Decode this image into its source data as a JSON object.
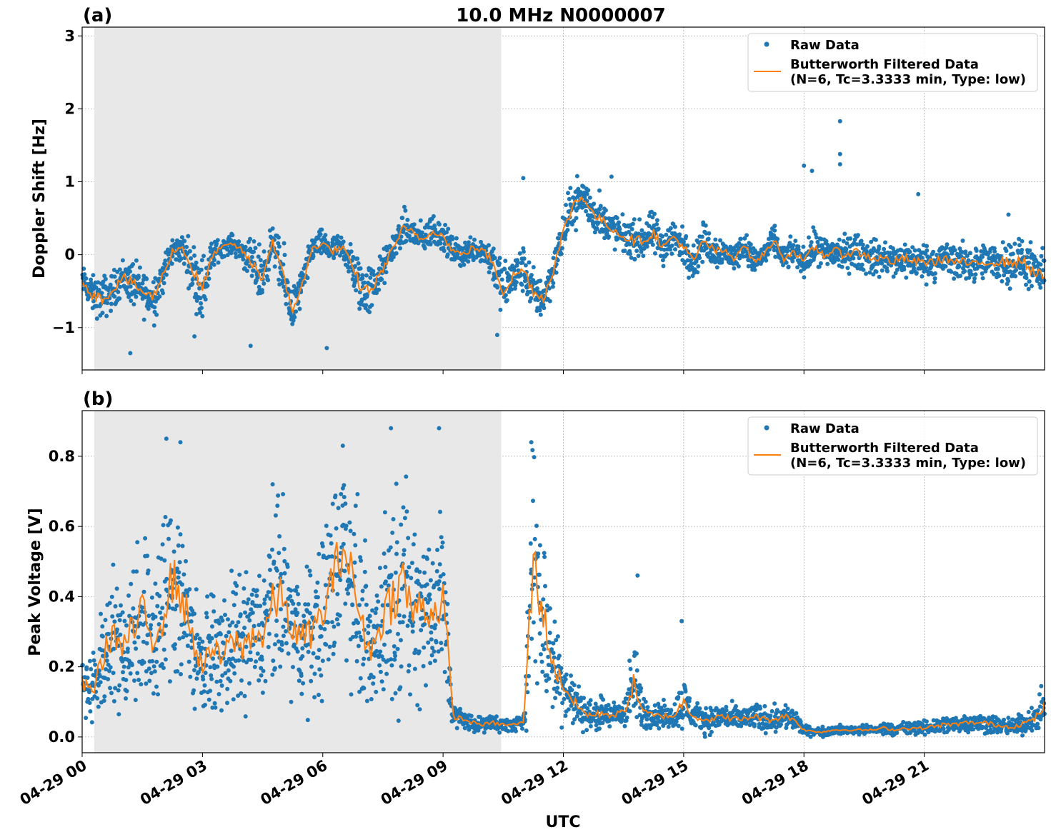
{
  "figure": {
    "title": "10.0 MHz N0000007",
    "xlabel": "UTC",
    "x_ticks": [
      "04-29 00",
      "04-29 03",
      "04-29 06",
      "04-29 09",
      "04-29 12",
      "04-29 15",
      "04-29 18",
      "04-29 21"
    ],
    "x_range_hours": [
      0,
      24
    ],
    "shaded_interval_hours": [
      0.3,
      10.45
    ],
    "colors": {
      "raw": "#1f77b4",
      "filtered": "#ff7f0e",
      "shade": "#e8e8e8",
      "grid": "#b0b0b0"
    }
  },
  "legend": {
    "raw_label": "Raw Data",
    "filtered_label_line1": "Butterworth Filtered Data",
    "filtered_label_line2": "(N=6, Tc=3.3333 min, Type: low)",
    "placement": "top-right"
  },
  "chart_data": [
    {
      "type": "scatter",
      "panel_label": "(a)",
      "ylabel": "Doppler Shift [Hz]",
      "ylim": [
        -1.58,
        3.12
      ],
      "y_ticks": [
        -1,
        0,
        1,
        2,
        3
      ],
      "y_tick_labels": [
        "−1",
        "0",
        "1",
        "2",
        "3"
      ],
      "grid": true,
      "series": [
        {
          "name": "Butterworth Filtered Data",
          "x": [
            0,
            0.25,
            0.5,
            0.75,
            1,
            1.25,
            1.5,
            1.75,
            2,
            2.25,
            2.5,
            2.75,
            3,
            3.25,
            3.5,
            3.75,
            4,
            4.25,
            4.5,
            4.75,
            5,
            5.25,
            5.5,
            5.75,
            6,
            6.25,
            6.5,
            6.75,
            7,
            7.25,
            7.5,
            7.75,
            8,
            8.25,
            8.5,
            8.75,
            9,
            9.25,
            9.5,
            9.75,
            10,
            10.25,
            10.5,
            10.75,
            11,
            11.25,
            11.5,
            11.75,
            12,
            12.25,
            12.5,
            12.75,
            13,
            13.25,
            13.5,
            13.75,
            14,
            14.25,
            14.5,
            14.75,
            15,
            15.25,
            15.5,
            15.75,
            16,
            16.25,
            16.5,
            16.75,
            17,
            17.25,
            17.5,
            17.75,
            18,
            18.25,
            18.5,
            18.75,
            19,
            19.25,
            19.5,
            19.75,
            20,
            20.25,
            20.5,
            20.75,
            21,
            21.25,
            21.5,
            21.75,
            22,
            22.25,
            22.5,
            22.75,
            23,
            23.25,
            23.5,
            23.75,
            24
          ],
          "y": [
            -0.35,
            -0.55,
            -0.6,
            -0.5,
            -0.3,
            -0.4,
            -0.5,
            -0.6,
            -0.3,
            0.05,
            0.1,
            -0.2,
            -0.5,
            0.0,
            0.1,
            0.15,
            0.05,
            -0.15,
            -0.3,
            0.2,
            -0.3,
            -0.75,
            -0.4,
            0.1,
            0.15,
            0.05,
            0.1,
            -0.2,
            -0.5,
            -0.45,
            -0.2,
            0.1,
            0.35,
            0.3,
            0.2,
            0.35,
            0.25,
            0.05,
            0.0,
            0.1,
            0.05,
            -0.1,
            -0.5,
            -0.3,
            -0.2,
            -0.5,
            -0.6,
            -0.2,
            0.3,
            0.7,
            0.8,
            0.55,
            0.45,
            0.35,
            0.25,
            0.2,
            0.2,
            0.3,
            0.1,
            0.25,
            0.1,
            -0.1,
            0.2,
            0.05,
            0.05,
            -0.05,
            0.15,
            -0.1,
            0.0,
            0.2,
            -0.05,
            0.05,
            -0.1,
            0.1,
            0.0,
            0.05,
            0.0,
            0.05,
            0.0,
            -0.05,
            -0.05,
            -0.1,
            -0.05,
            -0.1,
            -0.1,
            -0.1,
            -0.05,
            -0.1,
            -0.1,
            -0.15,
            -0.1,
            -0.1,
            -0.1,
            -0.1,
            -0.1,
            -0.25,
            -0.3
          ],
          "spread": [
            0.15,
            0.2,
            0.25,
            0.2,
            0.2,
            0.25,
            0.25,
            0.3,
            0.2,
            0.15,
            0.15,
            0.3,
            0.4,
            0.15,
            0.1,
            0.1,
            0.15,
            0.25,
            0.35,
            0.15,
            0.35,
            0.25,
            0.2,
            0.15,
            0.15,
            0.15,
            0.15,
            0.25,
            0.35,
            0.25,
            0.2,
            0.15,
            0.2,
            0.2,
            0.15,
            0.2,
            0.15,
            0.15,
            0.15,
            0.15,
            0.15,
            0.25,
            0.3,
            0.25,
            0.25,
            0.25,
            0.25,
            0.2,
            0.25,
            0.25,
            0.25,
            0.2,
            0.2,
            0.2,
            0.2,
            0.2,
            0.2,
            0.25,
            0.2,
            0.2,
            0.2,
            0.2,
            0.2,
            0.2,
            0.15,
            0.15,
            0.15,
            0.15,
            0.15,
            0.15,
            0.15,
            0.15,
            0.15,
            0.2,
            0.2,
            0.2,
            0.2,
            0.2,
            0.2,
            0.2,
            0.2,
            0.2,
            0.2,
            0.2,
            0.2,
            0.2,
            0.2,
            0.2,
            0.2,
            0.2,
            0.2,
            0.2,
            0.25,
            0.25,
            0.25,
            0.25,
            0.25
          ]
        }
      ],
      "outliers": [
        [
          18.9,
          1.83
        ],
        [
          18.9,
          1.38
        ],
        [
          18.9,
          1.24
        ],
        [
          18.0,
          1.22
        ],
        [
          18.2,
          1.15
        ],
        [
          20.85,
          0.83
        ],
        [
          11.0,
          1.05
        ],
        [
          13.2,
          1.07
        ],
        [
          12.9,
          0.88
        ],
        [
          23.1,
          0.55
        ],
        [
          1.2,
          -1.35
        ],
        [
          4.2,
          -1.25
        ],
        [
          6.1,
          -1.28
        ],
        [
          2.8,
          -1.12
        ],
        [
          10.35,
          -1.1
        ]
      ]
    },
    {
      "type": "scatter",
      "panel_label": "(b)",
      "ylabel": "Peak Voltage [V]",
      "ylim": [
        -0.045,
        0.93
      ],
      "y_ticks": [
        0.0,
        0.2,
        0.4,
        0.6,
        0.8
      ],
      "y_tick_labels": [
        "0.0",
        "0.2",
        "0.4",
        "0.6",
        "0.8"
      ],
      "grid": true,
      "series": [
        {
          "name": "Butterworth Filtered Data",
          "x": [
            0,
            0.25,
            0.5,
            0.75,
            1,
            1.25,
            1.5,
            1.75,
            2,
            2.25,
            2.5,
            2.75,
            3,
            3.25,
            3.5,
            3.75,
            4,
            4.25,
            4.5,
            4.75,
            5,
            5.25,
            5.5,
            5.75,
            6,
            6.25,
            6.5,
            6.75,
            7,
            7.25,
            7.5,
            7.75,
            8,
            8.25,
            8.5,
            8.75,
            9,
            9.25,
            9.5,
            9.75,
            10,
            10.25,
            10.5,
            10.75,
            11,
            11.25,
            11.5,
            11.75,
            12,
            12.25,
            12.5,
            12.75,
            13,
            13.25,
            13.5,
            13.75,
            14,
            14.25,
            14.5,
            14.75,
            15,
            15.25,
            15.5,
            15.75,
            16,
            16.25,
            16.5,
            16.75,
            17,
            17.25,
            17.5,
            17.75,
            18,
            18.25,
            18.5,
            18.75,
            19,
            19.25,
            19.5,
            19.75,
            20,
            20.25,
            20.5,
            20.75,
            21,
            21.25,
            21.5,
            21.75,
            22,
            22.25,
            22.5,
            22.75,
            23,
            23.25,
            23.5,
            23.75,
            24
          ],
          "y": [
            0.15,
            0.13,
            0.22,
            0.3,
            0.25,
            0.3,
            0.35,
            0.28,
            0.35,
            0.45,
            0.4,
            0.28,
            0.2,
            0.25,
            0.22,
            0.28,
            0.25,
            0.3,
            0.28,
            0.38,
            0.4,
            0.3,
            0.28,
            0.3,
            0.35,
            0.45,
            0.55,
            0.45,
            0.3,
            0.25,
            0.35,
            0.4,
            0.45,
            0.35,
            0.38,
            0.35,
            0.4,
            0.06,
            0.05,
            0.04,
            0.035,
            0.04,
            0.035,
            0.035,
            0.04,
            0.5,
            0.35,
            0.2,
            0.15,
            0.1,
            0.07,
            0.06,
            0.07,
            0.06,
            0.07,
            0.15,
            0.07,
            0.06,
            0.06,
            0.06,
            0.1,
            0.06,
            0.05,
            0.05,
            0.06,
            0.05,
            0.05,
            0.06,
            0.05,
            0.05,
            0.06,
            0.05,
            0.02,
            0.015,
            0.015,
            0.02,
            0.02,
            0.02,
            0.02,
            0.02,
            0.025,
            0.02,
            0.025,
            0.025,
            0.025,
            0.03,
            0.035,
            0.035,
            0.04,
            0.04,
            0.04,
            0.035,
            0.03,
            0.03,
            0.04,
            0.05,
            0.09
          ],
          "spread": [
            0.08,
            0.08,
            0.12,
            0.15,
            0.15,
            0.18,
            0.2,
            0.18,
            0.22,
            0.25,
            0.22,
            0.15,
            0.1,
            0.12,
            0.12,
            0.15,
            0.15,
            0.15,
            0.15,
            0.2,
            0.22,
            0.15,
            0.15,
            0.15,
            0.2,
            0.22,
            0.25,
            0.22,
            0.18,
            0.15,
            0.2,
            0.25,
            0.25,
            0.2,
            0.22,
            0.2,
            0.22,
            0.03,
            0.02,
            0.02,
            0.015,
            0.02,
            0.015,
            0.015,
            0.02,
            0.3,
            0.2,
            0.12,
            0.08,
            0.06,
            0.04,
            0.03,
            0.04,
            0.03,
            0.04,
            0.1,
            0.04,
            0.03,
            0.03,
            0.03,
            0.06,
            0.03,
            0.03,
            0.03,
            0.03,
            0.03,
            0.03,
            0.03,
            0.03,
            0.03,
            0.03,
            0.03,
            0.01,
            0.01,
            0.01,
            0.01,
            0.01,
            0.01,
            0.01,
            0.01,
            0.015,
            0.01,
            0.015,
            0.015,
            0.015,
            0.02,
            0.02,
            0.02,
            0.02,
            0.02,
            0.025,
            0.02,
            0.02,
            0.02,
            0.025,
            0.03,
            0.05
          ]
        }
      ],
      "outliers": [
        [
          2.1,
          0.85
        ],
        [
          2.45,
          0.84
        ],
        [
          7.7,
          0.88
        ],
        [
          8.9,
          0.88
        ],
        [
          6.5,
          0.83
        ],
        [
          11.2,
          0.84
        ],
        [
          4.75,
          0.72
        ],
        [
          13.85,
          0.46
        ],
        [
          14.95,
          0.33
        ]
      ]
    }
  ]
}
